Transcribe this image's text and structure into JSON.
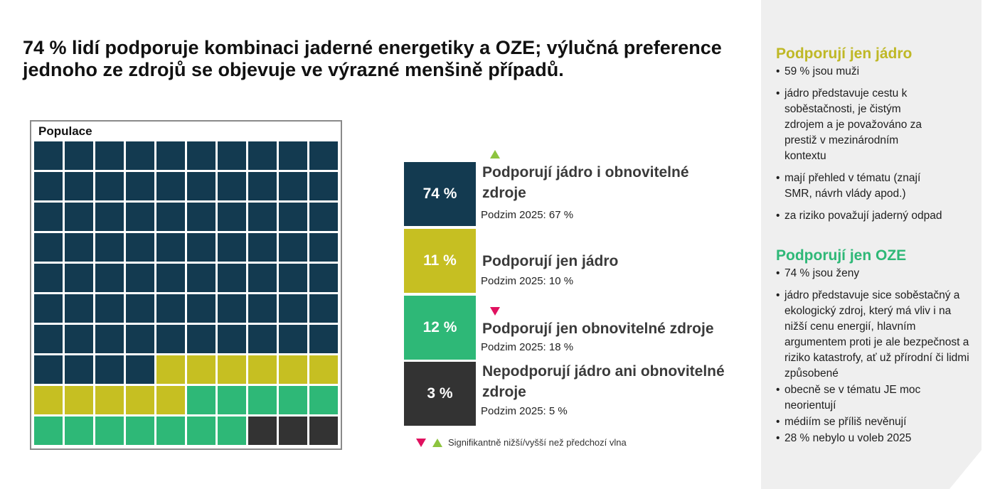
{
  "headline": "74 % lidí podporuje kombinaci jaderné energetiky a OZE; výlučná preference jednoho ze zdrojů se objevuje ve výrazné menšině případů.",
  "waffle_label": "Populace",
  "colors": {
    "both": "#133a50",
    "nuclear_only": "#c6bf22",
    "renewables_only": "#2eb877",
    "neither": "#333333",
    "up_marker": "#8dc43f",
    "down_marker": "#e0115f",
    "nuclear_heading": "#bfb826",
    "renewables_heading": "#2eb877"
  },
  "chart_data": {
    "type": "waffle",
    "title": "Populace",
    "total_cells": 100,
    "categories": [
      {
        "key": "both",
        "label": "Podporují jádro i obnovitelné zdroje",
        "value": 74,
        "value_label": "74 %",
        "previous_label": "Podzim 2025: 67 %",
        "previous": 67,
        "change": "up"
      },
      {
        "key": "nuclear_only",
        "label": "Podporují jen jádro",
        "value": 11,
        "value_label": "11 %",
        "previous_label": "Podzim 2025: 10 %",
        "previous": 10,
        "change": "none"
      },
      {
        "key": "renewables_only",
        "label": "Podporují jen obnovitelné zdroje",
        "value": 12,
        "value_label": "12 %",
        "previous_label": "Podzim 2025: 18 %",
        "previous": 18,
        "change": "down"
      },
      {
        "key": "neither",
        "label": "Nepodporují jádro ani obnovitelné zdroje",
        "value": 3,
        "value_label": "3 %",
        "previous_label": "Podzim 2025: 5 %",
        "previous": 5,
        "change": "none"
      }
    ]
  },
  "legend": {
    "text": "Signifikantně nižší/vyšší než předchozí vlna"
  },
  "sidebar": {
    "nuclear": {
      "heading": "Podporují jen jádro",
      "items": [
        "59 % jsou muži",
        "jádro představuje cestu k soběstačnosti, je čistým zdrojem a je považováno za prestiž v mezinárodním kontextu",
        "mají přehled v tématu (znají SMR, návrh vlády apod.)",
        "za riziko považují jaderný odpad"
      ]
    },
    "renewables": {
      "heading": "Podporují jen OZE",
      "items": [
        "74 % jsou ženy",
        "jádro představuje sice soběstačný a ekologický zdroj, který má vliv i na nižší cenu energií, hlavním argumentem proti je ale bezpečnost a riziko katastrofy, ať už přírodní či lidmi způsobené",
        "obecně se v tématu JE moc neorientují",
        "médiím se příliš nevěnují",
        "28 % nebylo u voleb 2025"
      ]
    }
  }
}
